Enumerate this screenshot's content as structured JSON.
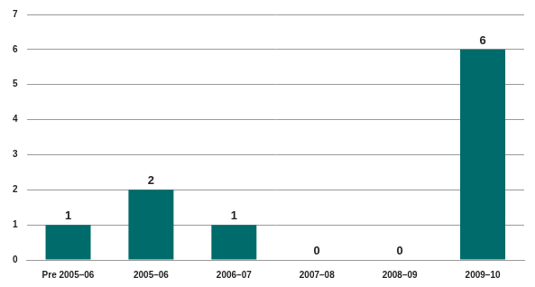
{
  "chart_data": {
    "type": "bar",
    "categories": [
      "Pre 2005–06",
      "2005–06",
      "2006–07",
      "2007–08",
      "2008–09",
      "2009–10"
    ],
    "values": [
      1,
      2,
      1,
      0,
      0,
      6
    ],
    "color": "#006b6b",
    "ylim": [
      0,
      7
    ],
    "yticks": [
      0,
      1,
      2,
      3,
      4,
      5,
      6,
      7
    ],
    "grid": true,
    "data_labels": true
  }
}
